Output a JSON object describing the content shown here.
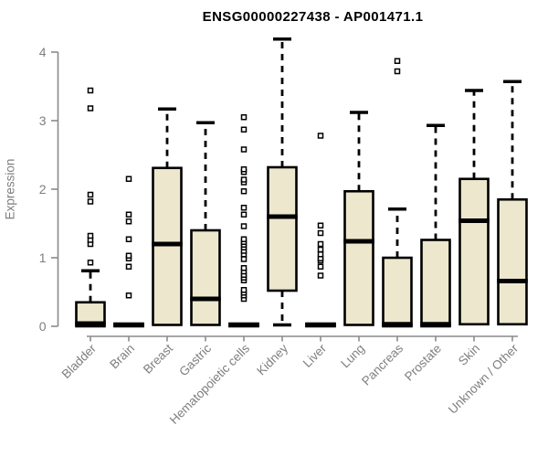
{
  "chart_data": {
    "type": "boxplot",
    "title": "ENSG00000227438 - AP001471.1",
    "ylabel": "Expression",
    "xlabel": "",
    "ylim": [
      0,
      4
    ],
    "yticks": [
      "0",
      "1",
      "2",
      "3",
      "4"
    ],
    "grid": false,
    "legend": "none",
    "colors": {
      "box_fill": "#ECE7CD",
      "box_stroke": "#000000",
      "median": "#000000",
      "whisker": "#000000",
      "axis": "#8a8a8a",
      "text": "#7e7e7e",
      "title": "#000000",
      "outlier_fill": "#ffffff"
    },
    "categories": [
      "Bladder",
      "Brain",
      "Breast",
      "Gastric",
      "Hematopoietic cells",
      "Kidney",
      "Liver",
      "Lung",
      "Pancreas",
      "Prostate",
      "Skin",
      "Unknown / Other"
    ],
    "boxes": [
      {
        "category": "Bladder",
        "whisker_low": 0,
        "q1": 0,
        "median": 0.04,
        "q3": 0.35,
        "whisker_high": 0.81,
        "outliers": [
          0.93,
          1.2,
          1.26,
          1.32,
          1.82,
          1.92,
          3.18,
          3.44
        ]
      },
      {
        "category": "Brain",
        "whisker_low": 0,
        "q1": 0,
        "median": 0.02,
        "q3": 0.04,
        "whisker_high": 0.04,
        "outliers": [
          0.45,
          0.87,
          0.99,
          1.03,
          1.27,
          1.53,
          1.63,
          2.15
        ]
      },
      {
        "category": "Breast",
        "whisker_low": 0.02,
        "q1": 0.02,
        "median": 1.2,
        "q3": 2.31,
        "whisker_high": 3.17,
        "outliers": []
      },
      {
        "category": "Gastric",
        "whisker_low": 0.02,
        "q1": 0.02,
        "median": 0.4,
        "q3": 1.4,
        "whisker_high": 2.97,
        "outliers": []
      },
      {
        "category": "Hematopoietic cells",
        "whisker_low": 0,
        "q1": 0,
        "median": 0.02,
        "q3": 0.04,
        "whisker_high": 0.04,
        "outliers": [
          0.4,
          0.45,
          0.49,
          0.53,
          0.67,
          0.71,
          0.75,
          0.8,
          0.85,
          0.98,
          1.05,
          1.1,
          1.15,
          1.19,
          1.23,
          1.27,
          1.46,
          1.63,
          1.73,
          1.97,
          2.1,
          2.14,
          2.25,
          2.29,
          2.58,
          2.87,
          3.05
        ]
      },
      {
        "category": "Kidney",
        "whisker_low": 0.02,
        "q1": 0.52,
        "median": 1.6,
        "q3": 2.32,
        "whisker_high": 4.19,
        "outliers": []
      },
      {
        "category": "Liver",
        "whisker_low": 0,
        "q1": 0,
        "median": 0.02,
        "q3": 0.04,
        "whisker_high": 0.04,
        "outliers": [
          0.74,
          0.87,
          0.96,
          0.99,
          1.05,
          1.12,
          1.2,
          1.36,
          1.47,
          2.78
        ]
      },
      {
        "category": "Lung",
        "whisker_low": 0.02,
        "q1": 0.02,
        "median": 1.24,
        "q3": 1.97,
        "whisker_high": 3.12,
        "outliers": []
      },
      {
        "category": "Pancreas",
        "whisker_low": 0,
        "q1": 0,
        "median": 0.03,
        "q3": 1.0,
        "whisker_high": 1.71,
        "outliers": [
          3.72,
          3.87
        ]
      },
      {
        "category": "Prostate",
        "whisker_low": 0,
        "q1": 0,
        "median": 0.03,
        "q3": 1.26,
        "whisker_high": 2.93,
        "outliers": []
      },
      {
        "category": "Skin",
        "whisker_low": 0.03,
        "q1": 0.03,
        "median": 1.54,
        "q3": 2.15,
        "whisker_high": 3.44,
        "outliers": []
      },
      {
        "category": "Unknown / Other",
        "whisker_low": 0.03,
        "q1": 0.03,
        "median": 0.66,
        "q3": 1.85,
        "whisker_high": 3.57,
        "outliers": []
      }
    ]
  }
}
